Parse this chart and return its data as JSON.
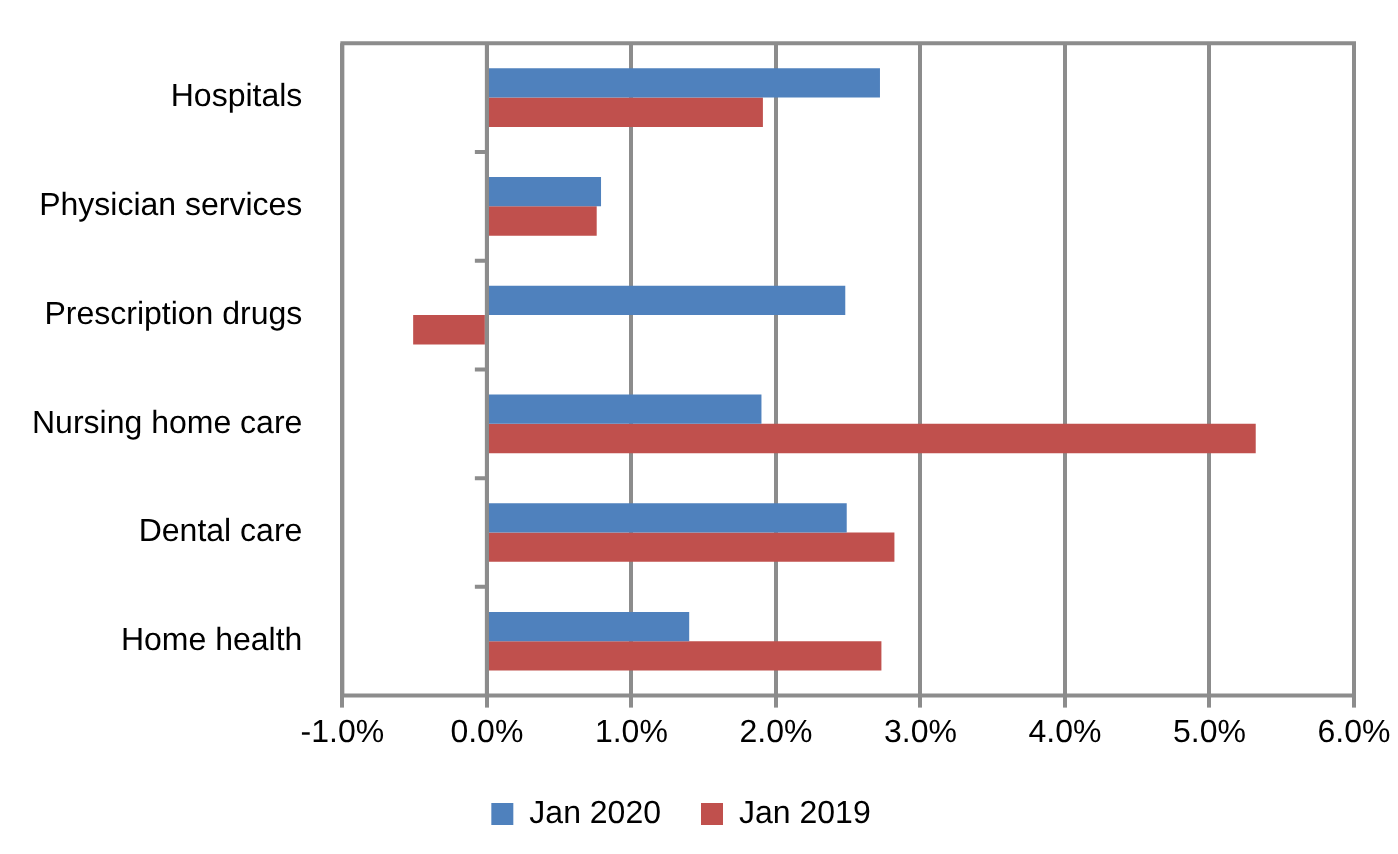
{
  "chart_data": {
    "type": "bar",
    "orientation": "horizontal",
    "categories": [
      "Hospitals",
      "Physician services",
      "Prescription drugs",
      "Nursing home care",
      "Dental care",
      "Home health"
    ],
    "series": [
      {
        "name": "Jan 2020",
        "color": "#4f81bd",
        "values": [
          2.72,
          0.79,
          2.48,
          1.9,
          2.49,
          1.4
        ]
      },
      {
        "name": "Jan 2019",
        "color": "#c0504d",
        "values": [
          1.91,
          0.76,
          -0.51,
          5.32,
          2.82,
          2.73
        ]
      }
    ],
    "xlim": [
      -1,
      6
    ],
    "xticks": [
      {
        "value": -1,
        "label": "-1.0%"
      },
      {
        "value": 0,
        "label": "0.0%"
      },
      {
        "value": 1,
        "label": "1.0%"
      },
      {
        "value": 2,
        "label": "2.0%"
      },
      {
        "value": 3,
        "label": "3.0%"
      },
      {
        "value": 4,
        "label": "4.0%"
      },
      {
        "value": 5,
        "label": "5.0%"
      },
      {
        "value": 6,
        "label": "6.0%"
      }
    ],
    "grid": "x",
    "legend": "bottom"
  }
}
